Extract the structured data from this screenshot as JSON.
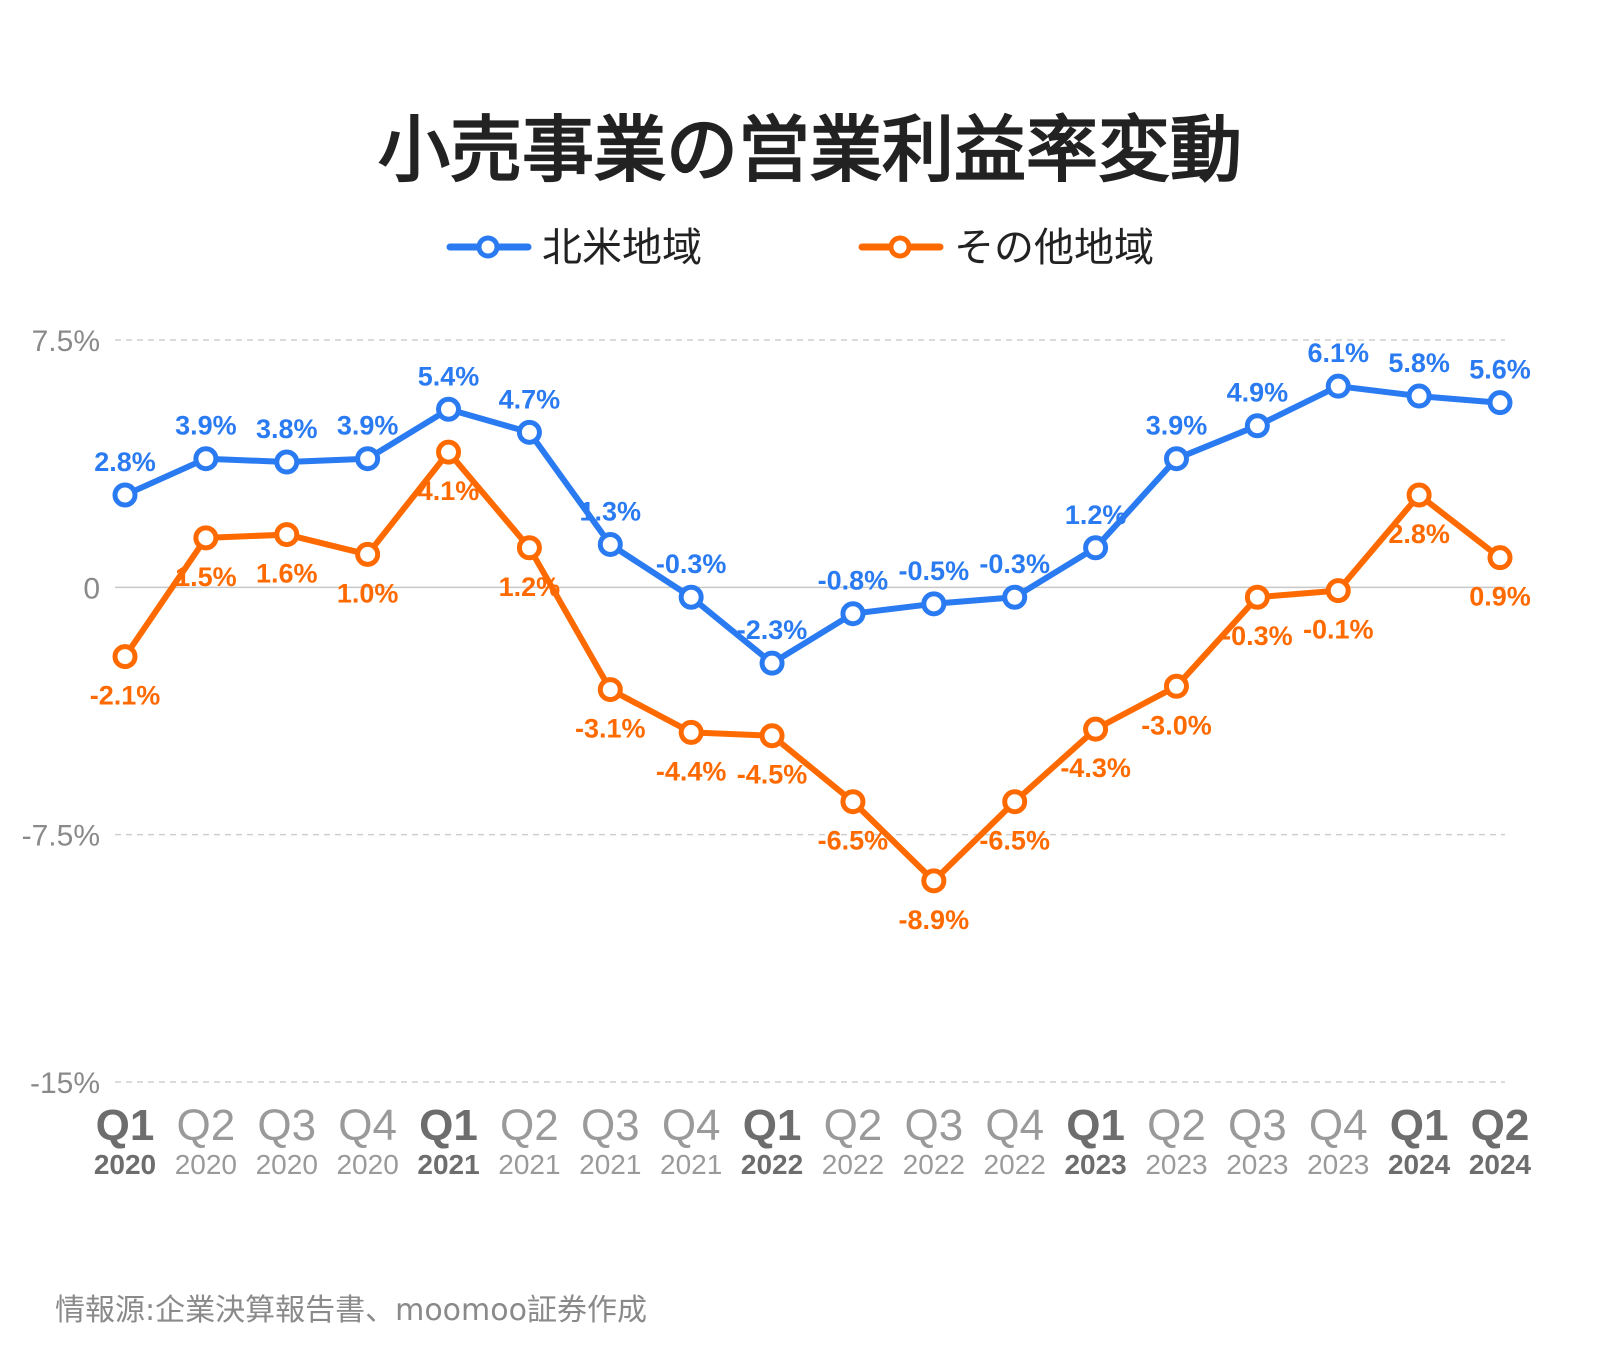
{
  "chart_data": {
    "type": "line",
    "title": "小売事業の営業利益率変動",
    "source": "情報源:企業決算報告書、moomoo証券作成",
    "categories": [
      {
        "quarter": "Q1",
        "year": "2020",
        "bold": true
      },
      {
        "quarter": "Q2",
        "year": "2020",
        "bold": false
      },
      {
        "quarter": "Q3",
        "year": "2020",
        "bold": false
      },
      {
        "quarter": "Q4",
        "year": "2020",
        "bold": false
      },
      {
        "quarter": "Q1",
        "year": "2021",
        "bold": true
      },
      {
        "quarter": "Q2",
        "year": "2021",
        "bold": false
      },
      {
        "quarter": "Q3",
        "year": "2021",
        "bold": false
      },
      {
        "quarter": "Q4",
        "year": "2021",
        "bold": false
      },
      {
        "quarter": "Q1",
        "year": "2022",
        "bold": true
      },
      {
        "quarter": "Q2",
        "year": "2022",
        "bold": false
      },
      {
        "quarter": "Q3",
        "year": "2022",
        "bold": false
      },
      {
        "quarter": "Q4",
        "year": "2022",
        "bold": false
      },
      {
        "quarter": "Q1",
        "year": "2023",
        "bold": true
      },
      {
        "quarter": "Q2",
        "year": "2023",
        "bold": false
      },
      {
        "quarter": "Q3",
        "year": "2023",
        "bold": false
      },
      {
        "quarter": "Q4",
        "year": "2023",
        "bold": false
      },
      {
        "quarter": "Q1",
        "year": "2024",
        "bold": true
      },
      {
        "quarter": "Q2",
        "year": "2024",
        "bold": true
      }
    ],
    "y_ticks": [
      {
        "value": 7.5,
        "label": "7.5%"
      },
      {
        "value": 0,
        "label": "0"
      },
      {
        "value": -7.5,
        "label": "-7.5%"
      },
      {
        "value": -15,
        "label": "-15%"
      }
    ],
    "ylim": [
      -15,
      7.5
    ],
    "grid": "horizontal-dashed",
    "legend_position": "top-center",
    "series": [
      {
        "name": "北米地域",
        "color": "#2A7BF2",
        "label_position": "above",
        "values": [
          2.8,
          3.9,
          3.8,
          3.9,
          5.4,
          4.7,
          1.3,
          -0.3,
          -2.3,
          -0.8,
          -0.5,
          -0.3,
          1.2,
          3.9,
          4.9,
          6.1,
          5.8,
          5.6
        ],
        "labels": [
          "2.8%",
          "3.9%",
          "3.8%",
          "3.9%",
          "5.4%",
          "4.7%",
          "1.3%",
          "-0.3%",
          "-2.3%",
          "-0.8%",
          "-0.5%",
          "-0.3%",
          "1.2%",
          "3.9%",
          "4.9%",
          "6.1%",
          "5.8%",
          "5.6%"
        ]
      },
      {
        "name": "その他地域",
        "color": "#FF6A00",
        "label_position": "below",
        "values": [
          -2.1,
          1.5,
          1.6,
          1.0,
          4.1,
          1.2,
          -3.1,
          -4.4,
          -4.5,
          -6.5,
          -8.9,
          -6.5,
          -4.3,
          -3.0,
          -0.3,
          -0.1,
          2.8,
          0.9
        ],
        "labels": [
          "-2.1%",
          "1.5%",
          "1.6%",
          "1.0%",
          "4.1%",
          "1.2%",
          "-3.1%",
          "-4.4%",
          "-4.5%",
          "-6.5%",
          "-8.9%",
          "-6.5%",
          "-4.3%",
          "-3.0%",
          "-0.3%",
          "-0.1%",
          "2.8%",
          "0.9%"
        ]
      }
    ]
  }
}
